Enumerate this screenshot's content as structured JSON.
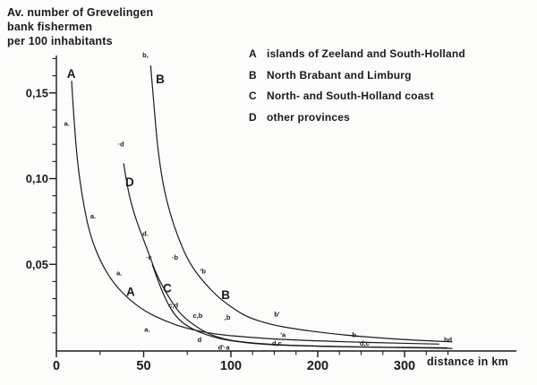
{
  "colors": {
    "ink": "#1a1a1a",
    "paper": "#fcfcfa"
  },
  "title_lines": [
    "Av. number of Grevelingen",
    "bank fishermen",
    "per 100 inhabitants"
  ],
  "legend": [
    {
      "key": "A",
      "label": "islands of Zeeland and South-Holland"
    },
    {
      "key": "B",
      "label": "North Brabant and Limburg"
    },
    {
      "key": "C",
      "label": "North- and South-Holland coast"
    },
    {
      "key": "D",
      "label": "other provinces"
    }
  ],
  "axes": {
    "x_label": "distance in km",
    "x_ticks": [
      {
        "label": "0",
        "km": 0
      },
      {
        "label": "50",
        "km": 50
      },
      {
        "label": "100",
        "km": 100
      },
      {
        "label": "200",
        "km": 200
      },
      {
        "label": "300",
        "km": 300
      }
    ],
    "x_minor_step_km": 25,
    "x_minor_max_km": 350,
    "y_ticks": [
      {
        "label": "0,05",
        "value": 0.05
      },
      {
        "label": "0,10",
        "value": 0.1
      },
      {
        "label": "0,15",
        "value": 0.15
      }
    ],
    "y_minor_step": 0.01,
    "y_minor_max": 0.17,
    "note": "x axis compressed to half scale beyond 100 km"
  },
  "chart_data": {
    "type": "scatter",
    "title": "Av. number of Grevelingen bank fishermen per 100 inhabitants",
    "xlabel": "distance in km",
    "ylabel": "Av. number of Grevelingen bank fishermen per 100 inhabitants",
    "xlim_km": [
      0,
      360
    ],
    "ylim": [
      0,
      0.17
    ],
    "x_axis_break": {
      "at_km": 100,
      "compression": 0.5
    },
    "series": [
      {
        "name": "A",
        "legend": "islands of Zeeland and South-Holland",
        "points": [
          {
            "km": 6,
            "v": 0.132
          },
          {
            "km": 21,
            "v": 0.078
          },
          {
            "km": 36,
            "v": 0.045
          },
          {
            "km": 52,
            "v": 0.012
          },
          {
            "km": 97,
            "v": 0.002
          },
          {
            "km": 160,
            "v": 0.009
          }
        ],
        "curve": [
          [
            8.7,
            0.157
          ],
          [
            10,
            0.135
          ],
          [
            12,
            0.11
          ],
          [
            15,
            0.088
          ],
          [
            19,
            0.068
          ],
          [
            25,
            0.052
          ],
          [
            32,
            0.04
          ],
          [
            40,
            0.031
          ],
          [
            50,
            0.023
          ],
          [
            62,
            0.017
          ],
          [
            75,
            0.0125
          ],
          [
            91,
            0.0092
          ],
          [
            120,
            0.0075
          ],
          [
            165,
            0.006
          ],
          [
            250,
            0.0045
          ],
          [
            340,
            0.0035
          ]
        ]
      },
      {
        "name": "B",
        "legend": "North Brabant and Limburg",
        "points": [
          {
            "km": 51,
            "v": 0.172
          },
          {
            "km": 68,
            "v": 0.054
          },
          {
            "km": 84,
            "v": 0.046
          },
          {
            "km": 83,
            "v": 0.02
          },
          {
            "km": 98,
            "v": 0.019
          },
          {
            "km": 153,
            "v": 0.021
          },
          {
            "km": 243,
            "v": 0.009
          },
          {
            "km": 350,
            "v": 0.005
          }
        ],
        "curve": [
          [
            54,
            0.166
          ],
          [
            56,
            0.142
          ],
          [
            58,
            0.118
          ],
          [
            61,
            0.097
          ],
          [
            65,
            0.08
          ],
          [
            70,
            0.065
          ],
          [
            76,
            0.051
          ],
          [
            84,
            0.04
          ],
          [
            93,
            0.0305
          ],
          [
            105,
            0.0235
          ],
          [
            120,
            0.019
          ],
          [
            145,
            0.015
          ],
          [
            175,
            0.0122
          ],
          [
            210,
            0.0099
          ],
          [
            250,
            0.0079
          ],
          [
            300,
            0.0061
          ],
          [
            355,
            0.0048
          ]
        ]
      },
      {
        "name": "C",
        "legend": "North- and South-Holland coast",
        "points": [
          {
            "km": 53,
            "v": 0.054
          },
          {
            "km": 67,
            "v": 0.026
          },
          {
            "km": 81,
            "v": 0.02
          },
          {
            "km": 153,
            "v": 0.004
          },
          {
            "km": 254,
            "v": 0.004
          }
        ],
        "curve": [
          [
            54.9,
            0.05
          ],
          [
            59,
            0.038
          ],
          [
            64,
            0.0266
          ],
          [
            69,
            0.0188
          ],
          [
            76,
            0.0131
          ],
          [
            87,
            0.0084
          ],
          [
            100,
            0.0052
          ],
          [
            143,
            0.0031
          ],
          [
            205,
            0.0021
          ],
          [
            308,
            0.0013
          ],
          [
            355,
            0.001
          ]
        ]
      },
      {
        "name": "D",
        "legend": "other provinces",
        "points": [
          {
            "km": 37,
            "v": 0.12
          },
          {
            "km": 51,
            "v": 0.068
          },
          {
            "km": 68,
            "v": 0.026
          },
          {
            "km": 82,
            "v": 0.006
          },
          {
            "km": 96,
            "v": 0.0015
          },
          {
            "km": 152,
            "v": 0.004
          },
          {
            "km": 253,
            "v": 0.004
          },
          {
            "km": 349,
            "v": 0.005
          }
        ],
        "curve": [
          [
            38.5,
            0.109
          ],
          [
            41,
            0.093
          ],
          [
            44.6,
            0.079
          ],
          [
            49.7,
            0.065
          ],
          [
            53.8,
            0.054
          ],
          [
            57,
            0.045
          ],
          [
            62.5,
            0.034
          ],
          [
            70,
            0.022
          ],
          [
            78,
            0.015
          ],
          [
            88,
            0.0089
          ],
          [
            101,
            0.0052
          ],
          [
            154,
            0.0029
          ],
          [
            246,
            0.0018
          ],
          [
            349,
            0.0013
          ]
        ]
      }
    ],
    "point_labels": [
      {
        "text": "a.",
        "km": 6,
        "v": 0.132
      },
      {
        "text": "b,",
        "km": 51,
        "v": 0.172
      },
      {
        "text": "·d",
        "km": 37,
        "v": 0.12
      },
      {
        "text": "a.",
        "km": 21,
        "v": 0.078
      },
      {
        "text": "d.",
        "km": 51,
        "v": 0.068
      },
      {
        "text": "·c",
        "km": 53,
        "v": 0.054
      },
      {
        "text": "·b",
        "km": 68,
        "v": 0.054
      },
      {
        "text": "a.",
        "km": 36,
        "v": 0.045
      },
      {
        "text": "'b",
        "km": 84,
        "v": 0.046
      },
      {
        "text": "c,d",
        "km": 67,
        "v": 0.026
      },
      {
        "text": "c,b",
        "km": 81,
        "v": 0.02
      },
      {
        "text": ",b",
        "km": 98,
        "v": 0.019
      },
      {
        "text": "b'",
        "km": 153,
        "v": 0.021
      },
      {
        "text": "a.",
        "km": 52,
        "v": 0.012
      },
      {
        "text": "'a",
        "km": 160,
        "v": 0.009
      },
      {
        "text": "d",
        "km": 82,
        "v": 0.006
      },
      {
        "text": "d,c",
        "km": 153,
        "v": 0.004
      },
      {
        "text": "b.",
        "km": 243,
        "v": 0.009
      },
      {
        "text": "d,c",
        "km": 254,
        "v": 0.004
      },
      {
        "text": "d'·a",
        "km": 96,
        "v": 0.0015
      },
      {
        "text": "bd",
        "km": 350,
        "v": 0.006
      }
    ],
    "curve_labels": [
      {
        "text": "A",
        "km": 8.5,
        "v": 0.161
      },
      {
        "text": "B",
        "km": 59.5,
        "v": 0.158
      },
      {
        "text": "D",
        "km": 42,
        "v": 0.098
      },
      {
        "text": "A",
        "km": 42.5,
        "v": 0.034
      },
      {
        "text": "C",
        "km": 63.5,
        "v": 0.036
      },
      {
        "text": "B",
        "km": 97,
        "v": 0.032
      }
    ]
  }
}
